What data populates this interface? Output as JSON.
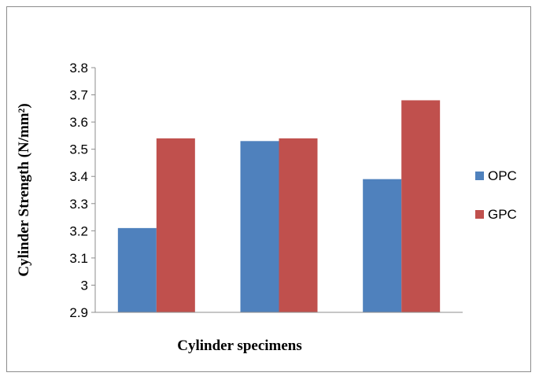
{
  "chart_data": {
    "type": "bar",
    "categories": [
      "",
      "",
      ""
    ],
    "series": [
      {
        "name": "OPC",
        "values": [
          3.21,
          3.53,
          3.39
        ],
        "color": "#4F81BD"
      },
      {
        "name": "GPC",
        "values": [
          3.54,
          3.54,
          3.68
        ],
        "color": "#C0504D"
      }
    ],
    "title": "",
    "xlabel": "Cylinder specimens",
    "ylabel": "Cylinder  Strength (N/mm²)",
    "ylim": [
      2.9,
      3.8
    ],
    "yticks": [
      "2.9",
      "3",
      "3.1",
      "3.2",
      "3.3",
      "3.4",
      "3.5",
      "3.6",
      "3.7",
      "3.8"
    ],
    "grid": false,
    "legend": "right"
  }
}
